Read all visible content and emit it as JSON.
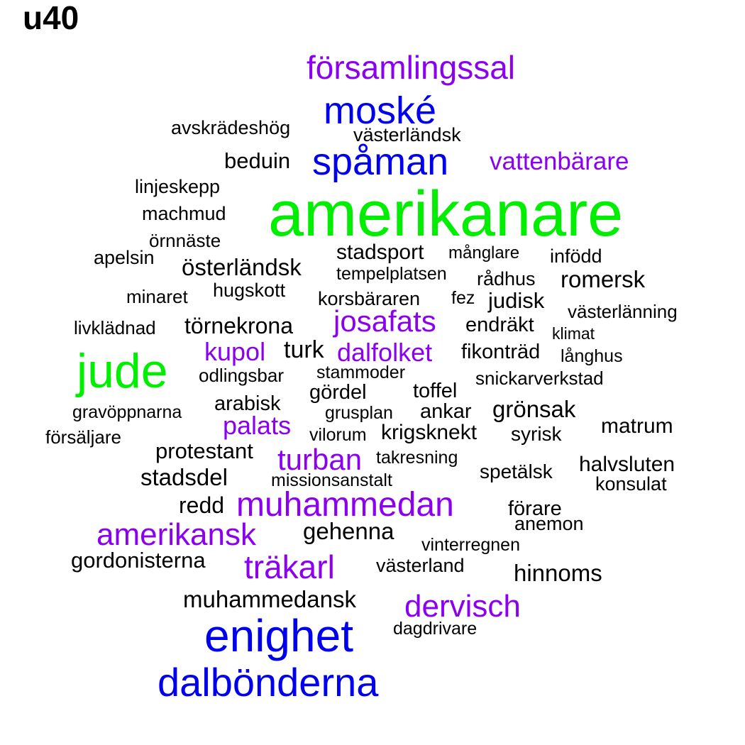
{
  "title": "u40",
  "colors": {
    "black": "#000000",
    "purple": "#8b00ee",
    "blue": "#0000ee",
    "green": "#00ee00"
  },
  "words": [
    {
      "text": "amerikanare",
      "color": "green"
    },
    {
      "text": "jude",
      "color": "green"
    },
    {
      "text": "enighet",
      "color": "blue"
    },
    {
      "text": "dalbönderna",
      "color": "blue"
    },
    {
      "text": "spåman",
      "color": "blue"
    },
    {
      "text": "moské",
      "color": "blue"
    },
    {
      "text": "muhammedan",
      "color": "purple"
    },
    {
      "text": "träkarl",
      "color": "purple"
    },
    {
      "text": "amerikansk",
      "color": "purple"
    },
    {
      "text": "dervisch",
      "color": "purple"
    },
    {
      "text": "församlingssal",
      "color": "purple"
    },
    {
      "text": "josafats",
      "color": "purple"
    },
    {
      "text": "turban",
      "color": "purple"
    },
    {
      "text": "vattenbärare",
      "color": "purple"
    },
    {
      "text": "dalfolket",
      "color": "purple"
    },
    {
      "text": "kupol",
      "color": "purple"
    },
    {
      "text": "palats",
      "color": "purple"
    },
    {
      "text": "muhammedansk",
      "color": "black"
    },
    {
      "text": "gordonisterna",
      "color": "black"
    },
    {
      "text": "gehenna",
      "color": "black"
    },
    {
      "text": "hinnoms",
      "color": "black"
    },
    {
      "text": "stadsdel",
      "color": "black"
    },
    {
      "text": "österländsk",
      "color": "black"
    },
    {
      "text": "törnekrona",
      "color": "black"
    },
    {
      "text": "protestant",
      "color": "black"
    },
    {
      "text": "grönsak",
      "color": "black"
    },
    {
      "text": "redd",
      "color": "black"
    },
    {
      "text": "turk",
      "color": "black"
    },
    {
      "text": "romersk",
      "color": "black"
    },
    {
      "text": "beduin",
      "color": "black"
    },
    {
      "text": "judisk",
      "color": "black"
    },
    {
      "text": "halvsluten",
      "color": "black"
    },
    {
      "text": "matrum",
      "color": "black"
    },
    {
      "text": "krigsknekt",
      "color": "black"
    },
    {
      "text": "stadsport",
      "color": "black"
    },
    {
      "text": "förare",
      "color": "black"
    },
    {
      "text": "fikonträd",
      "color": "black"
    },
    {
      "text": "endräkt",
      "color": "black"
    },
    {
      "text": "spetälsk",
      "color": "black"
    },
    {
      "text": "ankar",
      "color": "black"
    },
    {
      "text": "toffel",
      "color": "black"
    },
    {
      "text": "gördel",
      "color": "black"
    },
    {
      "text": "arabisk",
      "color": "black"
    },
    {
      "text": "västerländsk",
      "color": "black"
    },
    {
      "text": "avskrädeshög",
      "color": "black"
    },
    {
      "text": "korsbäraren",
      "color": "black"
    },
    {
      "text": "rådhus",
      "color": "black"
    },
    {
      "text": "infödd",
      "color": "black"
    },
    {
      "text": "syrisk",
      "color": "black"
    },
    {
      "text": "västerland",
      "color": "black"
    },
    {
      "text": "anemon",
      "color": "black"
    },
    {
      "text": "konsulat",
      "color": "black"
    },
    {
      "text": "snickarverkstad",
      "color": "black"
    },
    {
      "text": "machmud",
      "color": "black"
    },
    {
      "text": "linjeskepp",
      "color": "black"
    },
    {
      "text": "apelsin",
      "color": "black"
    },
    {
      "text": "hugskott",
      "color": "black"
    },
    {
      "text": "odlingsbar",
      "color": "black"
    },
    {
      "text": "västerlänning",
      "color": "black"
    },
    {
      "text": "livklädnad",
      "color": "black"
    },
    {
      "text": "minaret",
      "color": "black"
    },
    {
      "text": "örnnäste",
      "color": "black"
    },
    {
      "text": "gravöppnarna",
      "color": "black"
    },
    {
      "text": "försäljare",
      "color": "black"
    },
    {
      "text": "vinterregnen",
      "color": "black"
    },
    {
      "text": "dagdrivare",
      "color": "black"
    },
    {
      "text": "missionsanstalt",
      "color": "black"
    },
    {
      "text": "tempelplatsen",
      "color": "black"
    },
    {
      "text": "stammoder",
      "color": "black"
    },
    {
      "text": "takresning",
      "color": "black"
    },
    {
      "text": "grusplan",
      "color": "black"
    },
    {
      "text": "vilorum",
      "color": "black"
    },
    {
      "text": "månglare",
      "color": "black"
    },
    {
      "text": "fez",
      "color": "black"
    },
    {
      "text": "klimat",
      "color": "black"
    },
    {
      "text": "långhus",
      "color": "black"
    }
  ]
}
